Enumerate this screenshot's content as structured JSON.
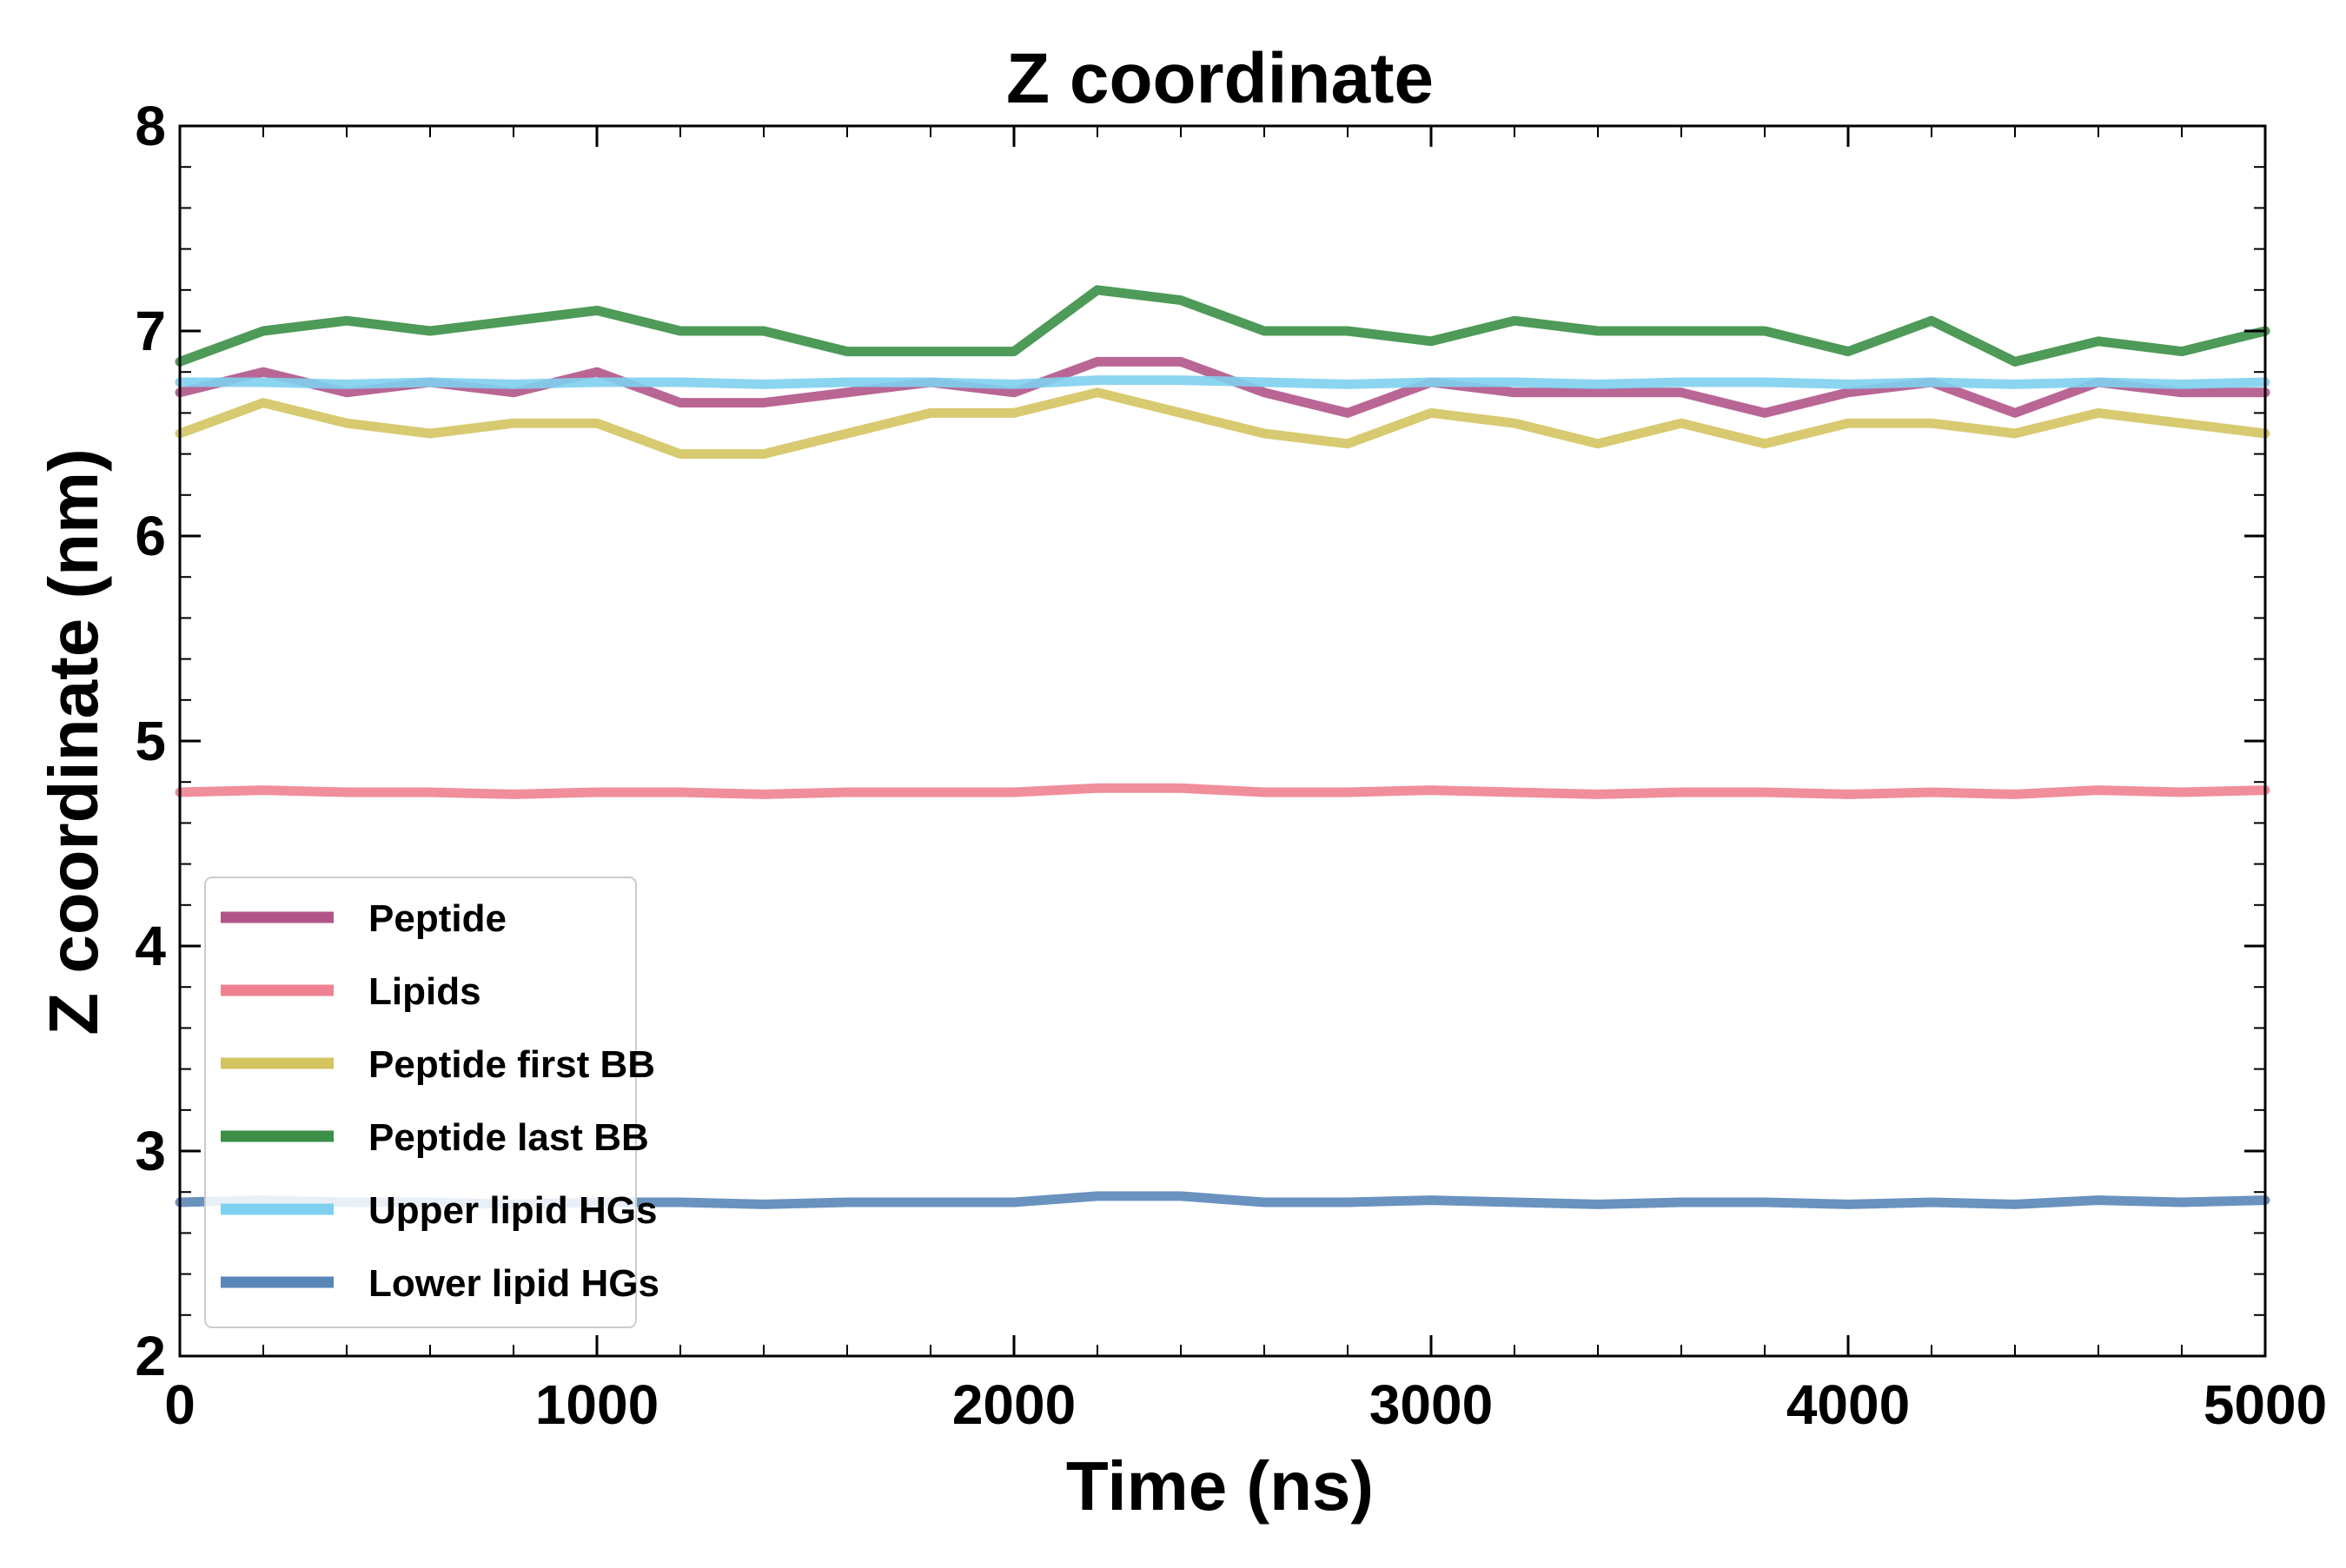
{
  "chart_data": {
    "type": "line",
    "title": "Z coordinate",
    "xlabel": "Time (ns)",
    "ylabel": "Z coordinate (nm)",
    "xlim": [
      0,
      5000
    ],
    "ylim": [
      2,
      8
    ],
    "xticks": [
      0,
      1000,
      2000,
      3000,
      4000,
      5000
    ],
    "yticks": [
      2,
      3,
      4,
      5,
      6,
      7,
      8
    ],
    "grid": false,
    "legend_position": "lower-left",
    "x": [
      0,
      200,
      400,
      600,
      800,
      1000,
      1200,
      1400,
      1600,
      1800,
      2000,
      2200,
      2400,
      2600,
      2800,
      3000,
      3200,
      3400,
      3600,
      3800,
      4000,
      4200,
      4400,
      4600,
      4800,
      5000
    ],
    "series": [
      {
        "name": "Peptide",
        "color": "#b15589",
        "values": [
          6.7,
          6.8,
          6.7,
          6.75,
          6.7,
          6.8,
          6.65,
          6.65,
          6.7,
          6.75,
          6.7,
          6.85,
          6.85,
          6.7,
          6.6,
          6.75,
          6.7,
          6.7,
          6.7,
          6.6,
          6.7,
          6.75,
          6.6,
          6.75,
          6.7,
          6.7
        ]
      },
      {
        "name": "Lipids",
        "color": "#ef8290",
        "values": [
          4.75,
          4.76,
          4.75,
          4.75,
          4.74,
          4.75,
          4.75,
          4.74,
          4.75,
          4.75,
          4.75,
          4.77,
          4.77,
          4.75,
          4.75,
          4.76,
          4.75,
          4.74,
          4.75,
          4.75,
          4.74,
          4.75,
          4.74,
          4.76,
          4.75,
          4.76
        ]
      },
      {
        "name": "Peptide first BB",
        "color": "#d4c460",
        "values": [
          6.5,
          6.65,
          6.55,
          6.5,
          6.55,
          6.55,
          6.4,
          6.4,
          6.5,
          6.6,
          6.6,
          6.7,
          6.6,
          6.5,
          6.45,
          6.6,
          6.55,
          6.45,
          6.55,
          6.45,
          6.55,
          6.55,
          6.5,
          6.6,
          6.55,
          6.5
        ]
      },
      {
        "name": "Peptide last BB",
        "color": "#3b8f46",
        "values": [
          6.85,
          7.0,
          7.05,
          7.0,
          7.05,
          7.1,
          7.0,
          7.0,
          6.9,
          6.9,
          6.9,
          7.2,
          7.15,
          7.0,
          7.0,
          6.95,
          7.05,
          7.0,
          7.0,
          7.0,
          6.9,
          7.05,
          6.85,
          6.95,
          6.9,
          7.0
        ]
      },
      {
        "name": "Upper lipid HGs",
        "color": "#7fd0ef",
        "values": [
          6.75,
          6.75,
          6.74,
          6.75,
          6.74,
          6.75,
          6.75,
          6.74,
          6.75,
          6.75,
          6.74,
          6.76,
          6.76,
          6.75,
          6.74,
          6.75,
          6.75,
          6.74,
          6.75,
          6.75,
          6.74,
          6.75,
          6.74,
          6.75,
          6.74,
          6.75
        ]
      },
      {
        "name": "Lower lipid HGs",
        "color": "#5a86b8",
        "values": [
          2.75,
          2.76,
          2.75,
          2.75,
          2.74,
          2.75,
          2.75,
          2.74,
          2.75,
          2.75,
          2.75,
          2.78,
          2.78,
          2.75,
          2.75,
          2.76,
          2.75,
          2.74,
          2.75,
          2.75,
          2.74,
          2.75,
          2.74,
          2.76,
          2.75,
          2.76
        ]
      }
    ]
  }
}
